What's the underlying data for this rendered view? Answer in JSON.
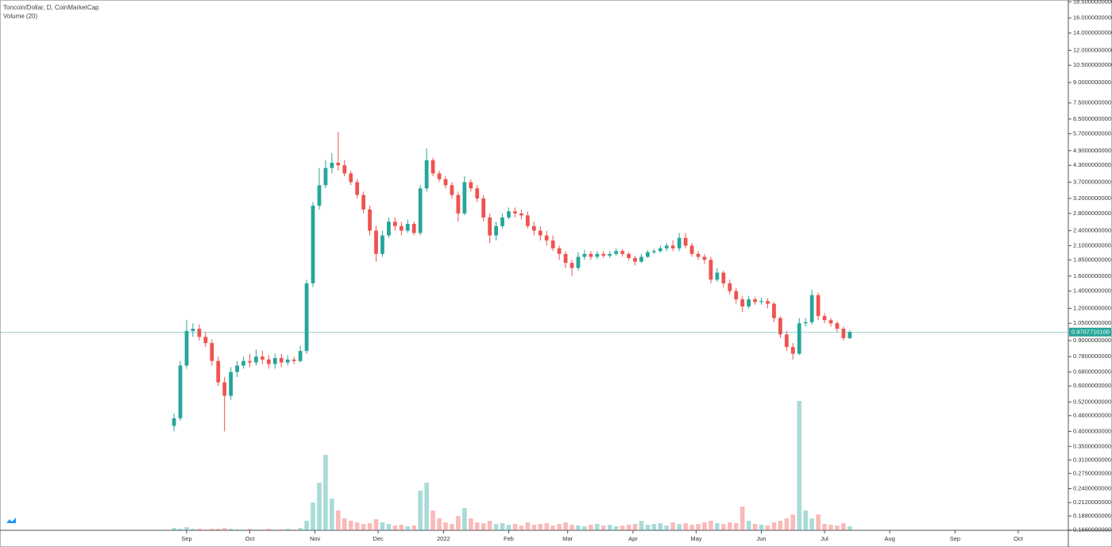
{
  "chart_data": {
    "type": "candlestick",
    "title": "Toncoin/Dollar, D, CoinMarketCap",
    "volume_title": "Volume (20)",
    "log_scale": true,
    "up_color": "#26a69a",
    "down_color": "#ef5350",
    "open": [
      0.42,
      0.45,
      0.72,
      0.98,
      1.0,
      0.93,
      0.88,
      0.75,
      0.62,
      0.55,
      0.68,
      0.72,
      0.75,
      0.74,
      0.78,
      0.76,
      0.73,
      0.77,
      0.74,
      0.76,
      0.75,
      0.82,
      1.5,
      3.0,
      3.6,
      4.2,
      4.4,
      4.3,
      4.0,
      3.7,
      3.3,
      2.9,
      2.4,
      1.95,
      2.3,
      2.6,
      2.5,
      2.4,
      2.55,
      2.35,
      3.5,
      4.5,
      4.0,
      3.8,
      3.6,
      3.3,
      2.8,
      3.7,
      3.5,
      3.2,
      2.7,
      2.3,
      2.5,
      2.7,
      2.85,
      2.8,
      2.75,
      2.5,
      2.4,
      2.3,
      2.2,
      2.05,
      1.95,
      1.8,
      1.72,
      1.9,
      1.95,
      1.9,
      1.95,
      1.92,
      1.95,
      2.0,
      1.95,
      1.88,
      1.82,
      1.9,
      1.98,
      2.0,
      2.05,
      2.1,
      2.05,
      2.25,
      2.1,
      1.95,
      1.9,
      1.85,
      1.55,
      1.65,
      1.5,
      1.4,
      1.3,
      1.22,
      1.3,
      1.27,
      1.28,
      1.25,
      1.1,
      0.95,
      0.85,
      0.8,
      1.05,
      1.06,
      1.35,
      1.12,
      1.08,
      1.05,
      1.0,
      0.92
    ],
    "high": [
      0.47,
      0.75,
      1.08,
      1.05,
      1.04,
      0.97,
      0.91,
      0.78,
      0.65,
      0.71,
      0.75,
      0.78,
      0.8,
      0.83,
      0.82,
      0.79,
      0.8,
      0.8,
      0.79,
      0.78,
      0.86,
      1.55,
      3.1,
      4.2,
      4.5,
      4.8,
      5.8,
      4.5,
      4.1,
      3.8,
      3.4,
      3.0,
      2.5,
      2.4,
      2.7,
      2.7,
      2.6,
      2.65,
      2.6,
      3.6,
      5.0,
      4.6,
      4.1,
      3.9,
      3.7,
      3.4,
      3.9,
      3.8,
      3.6,
      3.3,
      2.8,
      2.6,
      2.8,
      2.95,
      2.95,
      2.9,
      2.85,
      2.6,
      2.5,
      2.4,
      2.3,
      2.1,
      2.0,
      1.85,
      1.98,
      2.02,
      2.0,
      2.0,
      2.0,
      2.0,
      2.05,
      2.04,
      1.98,
      1.92,
      1.95,
      2.02,
      2.04,
      2.1,
      2.15,
      2.2,
      2.35,
      2.35,
      2.15,
      2.0,
      1.95,
      1.9,
      1.72,
      1.68,
      1.55,
      1.44,
      1.34,
      1.34,
      1.33,
      1.32,
      1.31,
      1.27,
      1.12,
      0.98,
      0.88,
      1.1,
      1.1,
      1.42,
      1.38,
      1.15,
      1.1,
      1.07,
      1.02,
      0.99
    ],
    "low": [
      0.4,
      0.44,
      0.7,
      0.93,
      0.9,
      0.85,
      0.72,
      0.6,
      0.4,
      0.53,
      0.65,
      0.7,
      0.71,
      0.72,
      0.73,
      0.7,
      0.7,
      0.71,
      0.72,
      0.73,
      0.74,
      0.8,
      1.45,
      2.9,
      3.5,
      4.0,
      4.1,
      3.9,
      3.6,
      3.2,
      2.8,
      2.3,
      1.82,
      1.9,
      2.25,
      2.4,
      2.3,
      2.35,
      2.3,
      2.3,
      3.4,
      3.9,
      3.7,
      3.5,
      3.2,
      2.6,
      2.75,
      3.4,
      3.1,
      2.6,
      2.15,
      2.2,
      2.45,
      2.65,
      2.7,
      2.65,
      2.45,
      2.3,
      2.2,
      2.1,
      2.0,
      1.85,
      1.72,
      1.6,
      1.68,
      1.85,
      1.85,
      1.86,
      1.88,
      1.88,
      1.92,
      1.9,
      1.84,
      1.76,
      1.8,
      1.88,
      1.95,
      1.97,
      2.0,
      2.0,
      2.0,
      2.05,
      1.9,
      1.85,
      1.78,
      1.5,
      1.52,
      1.45,
      1.36,
      1.25,
      1.16,
      1.2,
      1.24,
      1.24,
      1.2,
      1.06,
      0.92,
      0.82,
      0.76,
      0.79,
      1.02,
      1.04,
      1.08,
      1.05,
      1.02,
      0.97,
      0.9,
      0.91
    ],
    "close": [
      0.45,
      0.72,
      0.98,
      1.0,
      0.93,
      0.88,
      0.75,
      0.62,
      0.55,
      0.68,
      0.72,
      0.75,
      0.74,
      0.78,
      0.76,
      0.73,
      0.77,
      0.74,
      0.76,
      0.75,
      0.82,
      1.5,
      3.0,
      3.6,
      4.2,
      4.4,
      4.3,
      4.0,
      3.7,
      3.3,
      2.9,
      2.4,
      1.95,
      2.3,
      2.6,
      2.5,
      2.4,
      2.55,
      2.35,
      3.5,
      4.5,
      4.0,
      3.8,
      3.6,
      3.3,
      2.8,
      3.7,
      3.5,
      3.2,
      2.7,
      2.3,
      2.5,
      2.7,
      2.85,
      2.8,
      2.75,
      2.5,
      2.4,
      2.3,
      2.2,
      2.05,
      1.95,
      1.8,
      1.72,
      1.9,
      1.95,
      1.9,
      1.95,
      1.92,
      1.95,
      2.0,
      1.95,
      1.88,
      1.82,
      1.9,
      1.98,
      2.0,
      2.05,
      2.1,
      2.05,
      2.25,
      2.1,
      1.95,
      1.9,
      1.85,
      1.55,
      1.65,
      1.5,
      1.4,
      1.3,
      1.22,
      1.3,
      1.27,
      1.28,
      1.25,
      1.1,
      0.95,
      0.85,
      0.8,
      1.05,
      1.06,
      1.35,
      1.12,
      1.08,
      1.05,
      1.0,
      0.92,
      0.97
    ],
    "volume": [
      3,
      2,
      4,
      2,
      2,
      1,
      2,
      2,
      3,
      2,
      1,
      1,
      2,
      1,
      1,
      2,
      1,
      1,
      2,
      1,
      3,
      12,
      35,
      60,
      95,
      40,
      25,
      15,
      12,
      10,
      8,
      9,
      14,
      10,
      8,
      6,
      7,
      5,
      6,
      50,
      60,
      25,
      15,
      10,
      8,
      18,
      28,
      15,
      10,
      9,
      12,
      8,
      9,
      7,
      8,
      6,
      10,
      7,
      8,
      9,
      6,
      8,
      10,
      7,
      6,
      5,
      7,
      8,
      6,
      7,
      5,
      6,
      7,
      8,
      12,
      7,
      8,
      9,
      6,
      10,
      8,
      9,
      7,
      8,
      10,
      12,
      9,
      8,
      10,
      9,
      30,
      12,
      8,
      7,
      6,
      10,
      12,
      15,
      20,
      163,
      25,
      15,
      20,
      8,
      7,
      6,
      9,
      5
    ],
    "vlim": [
      0,
      200
    ],
    "xlim": [
      -27.55,
      141.6
    ],
    "xticks": [
      {
        "value": 2,
        "label": "Sep"
      },
      {
        "value": 12,
        "label": "Oct"
      },
      {
        "value": 22.33,
        "label": "Nov"
      },
      {
        "value": 32.33,
        "label": "Dec"
      },
      {
        "value": 42.67,
        "label": "2022"
      },
      {
        "value": 53,
        "label": "Feb"
      },
      {
        "value": 62.33,
        "label": "Mar"
      },
      {
        "value": 72.67,
        "label": "Apr"
      },
      {
        "value": 82.67,
        "label": "May"
      },
      {
        "value": 93,
        "label": "Jun"
      },
      {
        "value": 103,
        "label": "Jul"
      },
      {
        "value": 113.33,
        "label": "Aug"
      },
      {
        "value": 123.67,
        "label": "Sep"
      },
      {
        "value": 133.67,
        "label": "Oct"
      }
    ],
    "ylim": [
      0.1655,
      18.8
    ],
    "yticks": [
      {
        "value": 18.5,
        "label": "18.5000000000"
      },
      {
        "value": 16,
        "label": "16.0000000000"
      },
      {
        "value": 14,
        "label": "14.0000000000"
      },
      {
        "value": 12,
        "label": "12.0000000000"
      },
      {
        "value": 10.5,
        "label": "10.5000000000"
      },
      {
        "value": 9,
        "label": "9.0000000000"
      },
      {
        "value": 7.5,
        "label": "7.5000000000"
      },
      {
        "value": 6.5,
        "label": "6.5000000000"
      },
      {
        "value": 5.7,
        "label": "5.7000000000"
      },
      {
        "value": 4.9,
        "label": "4.9000000000"
      },
      {
        "value": 4.3,
        "label": "4.3000000000"
      },
      {
        "value": 3.7,
        "label": "3.7000000000"
      },
      {
        "value": 3.2,
        "label": "3.2000000000"
      },
      {
        "value": 2.8,
        "label": "2.8000000000"
      },
      {
        "value": 2.4,
        "label": "2.4000000000"
      },
      {
        "value": 2.1,
        "label": "2.1000000000"
      },
      {
        "value": 1.85,
        "label": "1.8500000000"
      },
      {
        "value": 1.6,
        "label": "1.6000000000"
      },
      {
        "value": 1.4,
        "label": "1.4000000000"
      },
      {
        "value": 1.2,
        "label": "1.2000000000"
      },
      {
        "value": 1.05,
        "label": "1.0500000000"
      },
      {
        "value": 0.9,
        "label": "0.9000000000"
      },
      {
        "value": 0.78,
        "label": "0.7800000000"
      },
      {
        "value": 0.68,
        "label": "0.6800000000"
      },
      {
        "value": 0.6,
        "label": "0.6000000000"
      },
      {
        "value": 0.52,
        "label": "0.5200000000"
      },
      {
        "value": 0.46,
        "label": "0.4600000000"
      },
      {
        "value": 0.4,
        "label": "0.4000000000"
      },
      {
        "value": 0.35,
        "label": "0.3500000000"
      },
      {
        "value": 0.31,
        "label": "0.3100000000"
      },
      {
        "value": 0.275,
        "label": "0.2750000000"
      },
      {
        "value": 0.24,
        "label": "0.2400000000"
      },
      {
        "value": 0.212,
        "label": "0.2120000000"
      },
      {
        "value": 0.188,
        "label": "0.1880000000"
      },
      {
        "value": 0.166,
        "label": "0.1660000000"
      }
    ],
    "last_price": {
      "value": 0.97077101,
      "label": "0.9707710100"
    },
    "last_price_color": "#26a69a"
  }
}
